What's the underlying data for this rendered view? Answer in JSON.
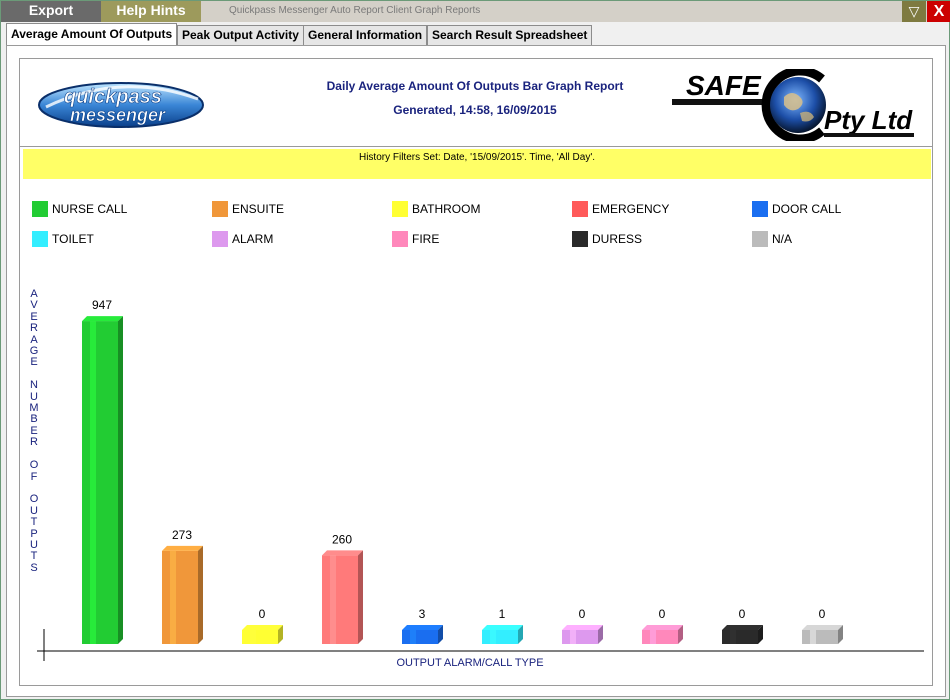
{
  "titlebar": {
    "export_label": "Export",
    "help_label": "Help Hints",
    "app_title": "Quickpass Messenger Auto Report Client Graph Reports",
    "minimize_glyph": "▽",
    "close_glyph": "X"
  },
  "tabs": [
    {
      "label": "Average Amount Of Outputs",
      "active": true
    },
    {
      "label": "Peak Output Activity",
      "active": false
    },
    {
      "label": "General Information",
      "active": false
    },
    {
      "label": "Search Result Spreadsheet",
      "active": false
    }
  ],
  "report": {
    "title": "Daily Average Amount Of Outputs Bar Graph Report",
    "generated": "Generated, 14:58, 16/09/2015",
    "filters": "History Filters Set: Date, '15/09/2015'. Time, 'All Day'.",
    "logo_left_words": [
      "quick",
      "pass",
      "messenger"
    ],
    "logo_right_words": [
      "SAFE",
      "Pty Ltd"
    ]
  },
  "chart_data": {
    "type": "bar",
    "categories": [
      "NURSE CALL",
      "ENSUITE",
      "BATHROOM",
      "EMERGENCY",
      "DOOR CALL",
      "TOILET",
      "ALARM",
      "FIRE",
      "DURESS",
      "N/A"
    ],
    "values": [
      947,
      273,
      0,
      260,
      3,
      1,
      0,
      0,
      0,
      0
    ],
    "colors": [
      "#22cc33",
      "#f0973a",
      "#ffff33",
      "#ff7a7a",
      "#1a6ef0",
      "#33eeff",
      "#dd99ee",
      "#ff88bb",
      "#2a2a2a",
      "#bbbbbb"
    ],
    "ylabel": "AVERAGE NUMBER OF OUTPUTS",
    "xlabel": "OUTPUT ALARM/CALL TYPE",
    "ylim": [
      0,
      1000
    ],
    "legend_placement": "top",
    "grid": false
  }
}
